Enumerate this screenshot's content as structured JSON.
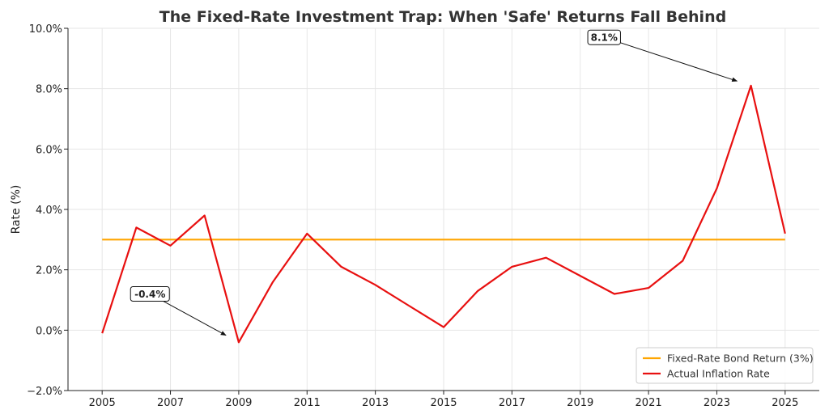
{
  "chart_data": {
    "type": "line",
    "title": "The Fixed-Rate Investment Trap: When 'Safe' Returns Fall Behind",
    "xlabel": "",
    "ylabel": "Rate (%)",
    "xlim": [
      2004.0,
      2026.0
    ],
    "ylim": [
      -2.0,
      10.0
    ],
    "x_ticks": [
      2005,
      2007,
      2009,
      2011,
      2013,
      2015,
      2017,
      2019,
      2021,
      2023,
      2025
    ],
    "y_ticks": [
      -2.0,
      0.0,
      2.0,
      4.0,
      6.0,
      8.0,
      10.0
    ],
    "y_tick_labels": [
      "−2.0%",
      "0.0%",
      "2.0%",
      "4.0%",
      "6.0%",
      "8.0%",
      "10.0%"
    ],
    "grid": true,
    "legend_position": "lower-right",
    "x": [
      2005,
      2006,
      2007,
      2008,
      2009,
      2010,
      2011,
      2012,
      2013,
      2014,
      2015,
      2016,
      2017,
      2018,
      2019,
      2020,
      2021,
      2022,
      2023,
      2024,
      2025
    ],
    "series": [
      {
        "name": "Fixed-Rate Bond Return (3%)",
        "color": "#FFA500",
        "values": [
          3.0,
          3.0,
          3.0,
          3.0,
          3.0,
          3.0,
          3.0,
          3.0,
          3.0,
          3.0,
          3.0,
          3.0,
          3.0,
          3.0,
          3.0,
          3.0,
          3.0,
          3.0,
          3.0,
          3.0,
          3.0
        ]
      },
      {
        "name": "Actual Inflation Rate",
        "color": "#E81010",
        "values": [
          -0.1,
          3.4,
          2.8,
          3.8,
          -0.4,
          1.6,
          3.2,
          2.1,
          1.5,
          0.8,
          0.1,
          1.3,
          2.1,
          2.4,
          1.8,
          1.2,
          1.4,
          2.3,
          4.7,
          8.1,
          3.2
        ]
      }
    ],
    "annotations": [
      {
        "text": "-0.4%",
        "x": 2009,
        "y": -0.4,
        "text_x": 2006.4,
        "text_y": 1.2
      },
      {
        "text": "8.1%",
        "x": 2024,
        "y": 8.1,
        "text_x": 2019.7,
        "text_y": 9.7
      }
    ]
  }
}
